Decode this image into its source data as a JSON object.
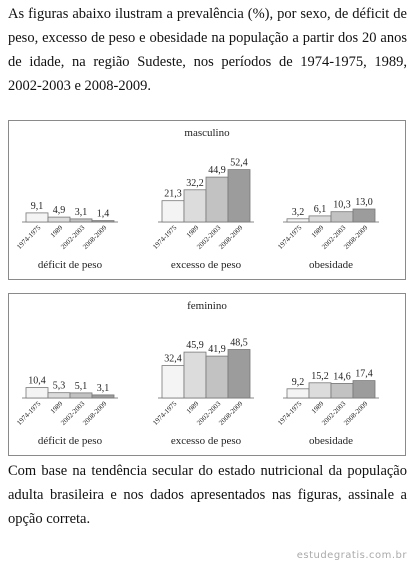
{
  "intro": "As figuras abaixo ilustram a prevalência (%), por sexo, de déficit de peso, excesso de peso e obesidade na população a partir dos 20 anos de idade, na região Sudeste, nos períodos de 1974-1975, 1989, 2002-2003 e 2008-2009.",
  "chart_data": [
    {
      "type": "bar",
      "title": "masculino",
      "categories": [
        "déficit de peso",
        "excesso de peso",
        "obesidade"
      ],
      "series": [
        {
          "name": "1974-1975",
          "color": "#f4f4f4",
          "values": [
            9.1,
            21.3,
            3.2
          ],
          "value_labels": [
            "9,1",
            "21,3",
            "3,2"
          ]
        },
        {
          "name": "1989",
          "color": "#dcdcdc",
          "values": [
            4.9,
            32.2,
            6.1
          ],
          "value_labels": [
            "4,9",
            "32,2",
            "6,1"
          ]
        },
        {
          "name": "2002-2003",
          "color": "#c2c2c2",
          "values": [
            3.1,
            44.9,
            10.3
          ],
          "value_labels": [
            "3,1",
            "44,9",
            "10,3"
          ]
        },
        {
          "name": "2008-2009",
          "color": "#9c9c9c",
          "values": [
            1.4,
            52.4,
            13.0
          ],
          "value_labels": [
            "1,4",
            "52,4",
            "13,0"
          ]
        }
      ]
    },
    {
      "type": "bar",
      "title": "feminino",
      "categories": [
        "déficit de peso",
        "excesso de peso",
        "obesidade"
      ],
      "series": [
        {
          "name": "1974-1975",
          "color": "#f4f4f4",
          "values": [
            10.4,
            32.4,
            9.2
          ],
          "value_labels": [
            "10,4",
            "32,4",
            "9,2"
          ]
        },
        {
          "name": "1989",
          "color": "#dcdcdc",
          "values": [
            5.3,
            45.9,
            15.2
          ],
          "value_labels": [
            "5,3",
            "45,9",
            "15,2"
          ]
        },
        {
          "name": "2002-2003",
          "color": "#c2c2c2",
          "values": [
            5.1,
            41.9,
            14.6
          ],
          "value_labels": [
            "5,1",
            "41,9",
            "14,6"
          ]
        },
        {
          "name": "2008-2009",
          "color": "#9c9c9c",
          "values": [
            3.1,
            48.5,
            17.4
          ],
          "value_labels": [
            "3,1",
            "48,5",
            "17,4"
          ]
        }
      ]
    }
  ],
  "question": "Com base na tendência secular do estado nutricional da população adulta brasileira e nos dados apresentados nas figuras, assinale a opção correta.",
  "watermark": "estudegratis.com.br"
}
